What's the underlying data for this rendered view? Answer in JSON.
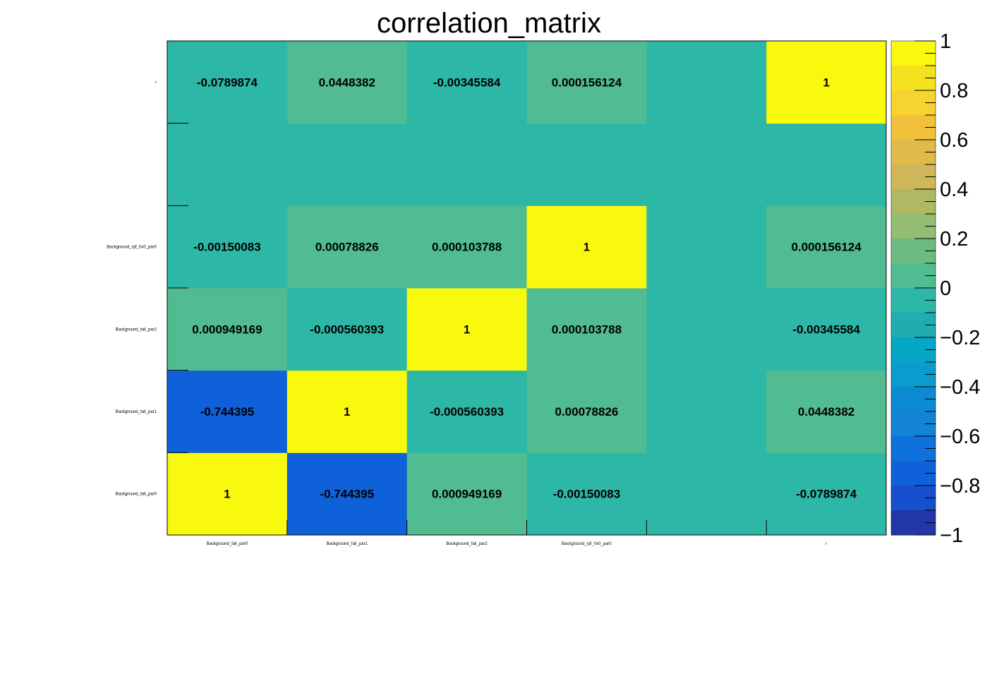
{
  "chart_data": {
    "type": "heatmap",
    "title": "correlation_matrix",
    "x_categories": [
      "Background_fail_par0",
      "Background_fail_par1",
      "Background_fail_par2",
      "Background_rpf_0x0_par0",
      "",
      "r"
    ],
    "y_categories": [
      "Background_fail_par0",
      "Background_fail_par1",
      "Background_fail_par2",
      "Background_rpf_0x0_par0",
      "",
      "r"
    ],
    "cells": [
      {
        "x": 0,
        "y": 0,
        "value": 1,
        "label": "1"
      },
      {
        "x": 1,
        "y": 0,
        "value": -0.744395,
        "label": "-0.744395"
      },
      {
        "x": 2,
        "y": 0,
        "value": 0.000949169,
        "label": "0.000949169"
      },
      {
        "x": 3,
        "y": 0,
        "value": -0.00150083,
        "label": "-0.00150083"
      },
      {
        "x": 4,
        "y": 0,
        "value": 0,
        "label": ""
      },
      {
        "x": 5,
        "y": 0,
        "value": -0.0789874,
        "label": "-0.0789874"
      },
      {
        "x": 0,
        "y": 1,
        "value": -0.744395,
        "label": "-0.744395"
      },
      {
        "x": 1,
        "y": 1,
        "value": 1,
        "label": "1"
      },
      {
        "x": 2,
        "y": 1,
        "value": -0.000560393,
        "label": "-0.000560393"
      },
      {
        "x": 3,
        "y": 1,
        "value": 0.00078826,
        "label": "0.00078826"
      },
      {
        "x": 4,
        "y": 1,
        "value": 0,
        "label": ""
      },
      {
        "x": 5,
        "y": 1,
        "value": 0.0448382,
        "label": "0.0448382"
      },
      {
        "x": 0,
        "y": 2,
        "value": 0.000949169,
        "label": "0.000949169"
      },
      {
        "x": 1,
        "y": 2,
        "value": -0.000560393,
        "label": "-0.000560393"
      },
      {
        "x": 2,
        "y": 2,
        "value": 1,
        "label": "1"
      },
      {
        "x": 3,
        "y": 2,
        "value": 0.000103788,
        "label": "0.000103788"
      },
      {
        "x": 4,
        "y": 2,
        "value": 0,
        "label": ""
      },
      {
        "x": 5,
        "y": 2,
        "value": -0.00345584,
        "label": "-0.00345584"
      },
      {
        "x": 0,
        "y": 3,
        "value": -0.00150083,
        "label": "-0.00150083"
      },
      {
        "x": 1,
        "y": 3,
        "value": 0.00078826,
        "label": "0.00078826"
      },
      {
        "x": 2,
        "y": 3,
        "value": 0.000103788,
        "label": "0.000103788"
      },
      {
        "x": 3,
        "y": 3,
        "value": 1,
        "label": "1"
      },
      {
        "x": 4,
        "y": 3,
        "value": 0,
        "label": ""
      },
      {
        "x": 5,
        "y": 3,
        "value": 0.000156124,
        "label": "0.000156124"
      },
      {
        "x": 0,
        "y": 4,
        "value": 0,
        "label": ""
      },
      {
        "x": 1,
        "y": 4,
        "value": 0,
        "label": ""
      },
      {
        "x": 2,
        "y": 4,
        "value": 0,
        "label": ""
      },
      {
        "x": 3,
        "y": 4,
        "value": 0,
        "label": ""
      },
      {
        "x": 4,
        "y": 4,
        "value": 0,
        "label": ""
      },
      {
        "x": 5,
        "y": 4,
        "value": 0,
        "label": ""
      },
      {
        "x": 0,
        "y": 5,
        "value": -0.0789874,
        "label": "-0.0789874"
      },
      {
        "x": 1,
        "y": 5,
        "value": 0.0448382,
        "label": "0.0448382"
      },
      {
        "x": 2,
        "y": 5,
        "value": -0.00345584,
        "label": "-0.00345584"
      },
      {
        "x": 3,
        "y": 5,
        "value": 0.000156124,
        "label": "0.000156124"
      },
      {
        "x": 4,
        "y": 5,
        "value": 0,
        "label": ""
      },
      {
        "x": 5,
        "y": 5,
        "value": 1,
        "label": "1"
      }
    ],
    "zlim": [
      -1,
      1
    ],
    "z_ticks": [
      "1",
      "0.8",
      "0.6",
      "0.4",
      "0.2",
      "0",
      "−0.2",
      "−0.4",
      "−0.6",
      "−0.8",
      "−1"
    ],
    "colorbar_colors": [
      "#f9f90e",
      "#f4e221",
      "#f7d32f",
      "#f2c13b",
      "#e0ba4a",
      "#ceb65b",
      "#afb862",
      "#92bd72",
      "#6dbb81",
      "#51bb91",
      "#2db7a6",
      "#20adb2",
      "#05a7c5",
      "#0b9ccf",
      "#0c8ad2",
      "#1383d4",
      "#0f71db",
      "#0f61d9",
      "#1750cf",
      "#2336a7"
    ],
    "grid": false,
    "colorbar": "right"
  }
}
